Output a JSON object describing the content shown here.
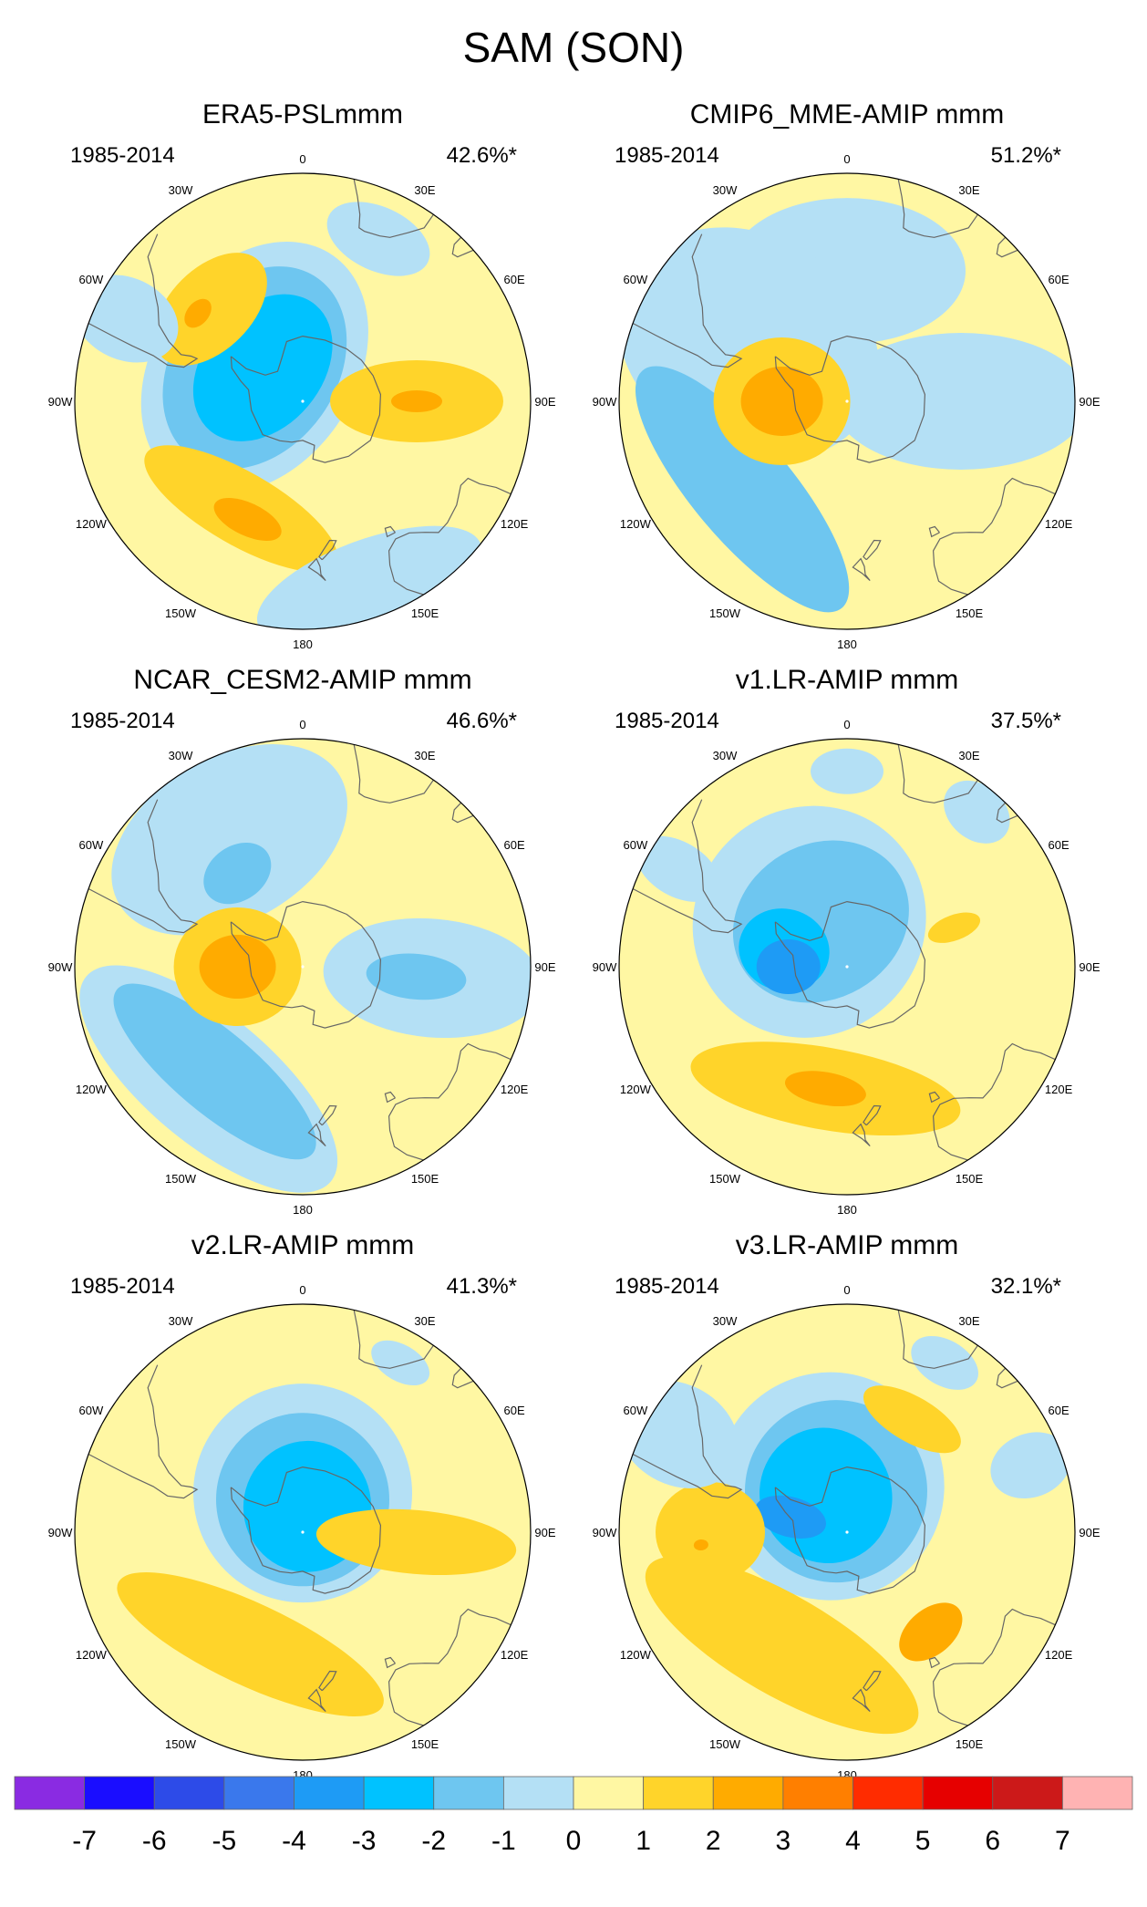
{
  "figure": {
    "title": "SAM (SON)",
    "lon_labels": [
      "0",
      "30E",
      "60E",
      "90E",
      "120E",
      "150E",
      "180",
      "150W",
      "120W",
      "90W",
      "60W",
      "30W"
    ],
    "panels": [
      {
        "title": "ERA5-PSLmmm",
        "period": "1985-2014",
        "pct": "42.6%*",
        "features": [
          {
            "type": "blob",
            "lat": -67,
            "lon": -95,
            "rx": 55,
            "ry": 45,
            "level": -4
          },
          {
            "type": "blob",
            "lat": -72,
            "lon": -55,
            "rx": 150,
            "ry": 110,
            "level": -1
          },
          {
            "type": "blob",
            "lat": -72,
            "lon": -55,
            "rx": 120,
            "ry": 90,
            "level": -2
          },
          {
            "type": "blob",
            "lat": -74,
            "lon": -50,
            "rx": 90,
            "ry": 65,
            "level": -3
          },
          {
            "type": "blob",
            "lat": -50,
            "lon": -45,
            "rx": 75,
            "ry": 45,
            "level": 1
          },
          {
            "type": "blob",
            "lat": -48,
            "lon": -50,
            "rx": 18,
            "ry": 12,
            "level": 2
          },
          {
            "type": "blob",
            "lat": -55,
            "lon": 90,
            "rx": 45,
            "ry": 95,
            "level": 1
          },
          {
            "type": "blob",
            "lat": -55,
            "lon": 90,
            "rx": 12,
            "ry": 28,
            "level": 2
          },
          {
            "type": "blob",
            "lat": -52,
            "lon": -150,
            "rx": 120,
            "ry": 40,
            "level": 1
          },
          {
            "type": "blob",
            "lat": -50,
            "lon": -155,
            "rx": 40,
            "ry": 18,
            "level": 2
          },
          {
            "type": "blob",
            "lat": -35,
            "lon": 25,
            "rx": 60,
            "ry": 35,
            "level": -1
          },
          {
            "type": "blob",
            "lat": -30,
            "lon": -65,
            "rx": 45,
            "ry": 60,
            "level": -1
          },
          {
            "type": "blob",
            "lat": -30,
            "lon": 160,
            "rx": 130,
            "ry": 50,
            "level": -1
          }
        ]
      },
      {
        "title": "CMIP6_MME-AMIP  mmm",
        "period": "1985-2014",
        "pct": "51.2%*",
        "features": [
          {
            "type": "blob",
            "lat": -50,
            "lon": 0,
            "rx": 130,
            "ry": 80,
            "level": -1
          },
          {
            "type": "blob",
            "lat": -55,
            "lon": -60,
            "rx": 120,
            "ry": 150,
            "level": -1
          },
          {
            "type": "blob",
            "lat": -55,
            "lon": 90,
            "rx": 75,
            "ry": 140,
            "level": -1
          },
          {
            "type": "blob",
            "lat": -48,
            "lon": -130,
            "rx": 170,
            "ry": 55,
            "level": -2
          },
          {
            "type": "blob",
            "lat": -70,
            "lon": -90,
            "rx": 70,
            "ry": 75,
            "level": 1
          },
          {
            "type": "blob",
            "lat": -70,
            "lon": -90,
            "rx": 38,
            "ry": 45,
            "level": 3
          }
        ]
      },
      {
        "title": "NCAR_CESM2-AMIP  mmm",
        "period": "1985-2014",
        "pct": "46.6%*",
        "features": [
          {
            "type": "blob",
            "lat": -45,
            "lon": -30,
            "rx": 140,
            "ry": 90,
            "level": -1
          },
          {
            "type": "blob",
            "lat": -55,
            "lon": -35,
            "rx": 40,
            "ry": 30,
            "level": -2
          },
          {
            "type": "blob",
            "lat": -50,
            "lon": 95,
            "rx": 65,
            "ry": 120,
            "level": -1
          },
          {
            "type": "blob",
            "lat": -55,
            "lon": 95,
            "rx": 25,
            "ry": 55,
            "level": -2
          },
          {
            "type": "blob",
            "lat": -45,
            "lon": -140,
            "rx": 175,
            "ry": 70,
            "level": -1
          },
          {
            "type": "blob",
            "lat": -48,
            "lon": -140,
            "rx": 140,
            "ry": 45,
            "level": -2
          },
          {
            "type": "blob",
            "lat": -70,
            "lon": -90,
            "rx": 65,
            "ry": 70,
            "level": 1
          },
          {
            "type": "blob",
            "lat": -70,
            "lon": -90,
            "rx": 35,
            "ry": 42,
            "level": 3
          }
        ]
      },
      {
        "title": "v1.LR-AMIP  mmm",
        "period": "1985-2014",
        "pct": "37.5%*",
        "features": [
          {
            "type": "blob",
            "lat": -72,
            "lon": -40,
            "rx": 130,
            "ry": 125,
            "level": -1
          },
          {
            "type": "blob",
            "lat": -74,
            "lon": -30,
            "rx": 100,
            "ry": 85,
            "level": -2
          },
          {
            "type": "blob",
            "lat": -70,
            "lon": -75,
            "rx": 45,
            "ry": 50,
            "level": -3
          },
          {
            "type": "blob",
            "lat": -72,
            "lon": -90,
            "rx": 30,
            "ry": 35,
            "level": -4
          },
          {
            "type": "blob",
            "lat": -52,
            "lon": -170,
            "rx": 150,
            "ry": 45,
            "level": 1
          },
          {
            "type": "blob",
            "lat": -52,
            "lon": -170,
            "rx": 45,
            "ry": 18,
            "level": 2
          },
          {
            "type": "blob",
            "lat": -55,
            "lon": 70,
            "rx": 14,
            "ry": 30,
            "level": 1
          },
          {
            "type": "blob",
            "lat": -30,
            "lon": 0,
            "rx": 40,
            "ry": 25,
            "level": -1
          },
          {
            "type": "blob",
            "lat": -30,
            "lon": -60,
            "rx": 30,
            "ry": 50,
            "level": -1
          },
          {
            "type": "blob",
            "lat": -28,
            "lon": 40,
            "rx": 40,
            "ry": 30,
            "level": -1
          }
        ]
      },
      {
        "title": "v2.LR-AMIP  mmm",
        "period": "1985-2014",
        "pct": "41.3%*",
        "features": [
          {
            "type": "blob",
            "lat": -78,
            "lon": 0,
            "rx": 120,
            "ry": 120,
            "level": -1
          },
          {
            "type": "blob",
            "lat": -80,
            "lon": 0,
            "rx": 95,
            "ry": 95,
            "level": -2
          },
          {
            "type": "blob",
            "lat": -82,
            "lon": 10,
            "rx": 70,
            "ry": 72,
            "level": -3
          },
          {
            "type": "blob",
            "lat": -52,
            "lon": -155,
            "rx": 160,
            "ry": 45,
            "level": 1
          },
          {
            "type": "blob",
            "lat": -55,
            "lon": 95,
            "rx": 35,
            "ry": 110,
            "level": 1
          },
          {
            "type": "blob",
            "lat": -30,
            "lon": 30,
            "rx": 35,
            "ry": 20,
            "level": -1
          }
        ]
      },
      {
        "title": "v3.LR-AMIP  mmm",
        "period": "1985-2014",
        "pct": "32.1%*",
        "features": [
          {
            "type": "blob",
            "lat": -75,
            "lon": -20,
            "rx": 125,
            "ry": 125,
            "level": -1
          },
          {
            "type": "blob",
            "lat": -77,
            "lon": -15,
            "rx": 100,
            "ry": 100,
            "level": -2
          },
          {
            "type": "blob",
            "lat": -77,
            "lon": -30,
            "rx": 72,
            "ry": 75,
            "level": -3
          },
          {
            "type": "blob",
            "lat": -72,
            "lon": -75,
            "rx": 22,
            "ry": 40,
            "level": -4
          },
          {
            "type": "blob",
            "lat": -50,
            "lon": -150,
            "rx": 170,
            "ry": 55,
            "level": 1
          },
          {
            "type": "blob",
            "lat": -48,
            "lon": -90,
            "rx": 55,
            "ry": 60,
            "level": 1
          },
          {
            "type": "blob",
            "lat": -50,
            "lon": 140,
            "rx": 40,
            "ry": 25,
            "level": 2
          },
          {
            "type": "blob",
            "lat": -50,
            "lon": 30,
            "rx": 60,
            "ry": 25,
            "level": 1
          },
          {
            "type": "blob",
            "lat": -45,
            "lon": -95,
            "rx": 6,
            "ry": 8,
            "level": 2
          },
          {
            "type": "blob",
            "lat": -30,
            "lon": -60,
            "rx": 55,
            "ry": 70,
            "level": -1
          },
          {
            "type": "blob",
            "lat": -30,
            "lon": 30,
            "rx": 40,
            "ry": 25,
            "level": -1
          },
          {
            "type": "blob",
            "lat": -30,
            "lon": 70,
            "rx": 35,
            "ry": 45,
            "level": -1
          }
        ]
      }
    ],
    "colorbar": {
      "labels": [
        "-7",
        "-6",
        "-5",
        "-4",
        "-3",
        "-2",
        "-1",
        "0",
        "1",
        "2",
        "3",
        "4",
        "5",
        "6",
        "7"
      ],
      "colors": [
        "#8a2be2",
        "#1a0dff",
        "#2d4be8",
        "#3a78ec",
        "#1e9bf5",
        "#00c2ff",
        "#6ec6f0",
        "#b4e0f5",
        "#fff7a3",
        "#ffd42a",
        "#ffab00",
        "#ff7f00",
        "#ff2c00",
        "#e60000",
        "#cc1919",
        "#ffb3b3"
      ]
    },
    "palette": {
      "-4": "#1e9bf5",
      "-3": "#00c2ff",
      "-2": "#6ec6f0",
      "-1": "#b4e0f5",
      "0": "#fff7a3",
      "1": "#ffd42a",
      "2": "#ffab00",
      "3": "#ffab00"
    }
  }
}
